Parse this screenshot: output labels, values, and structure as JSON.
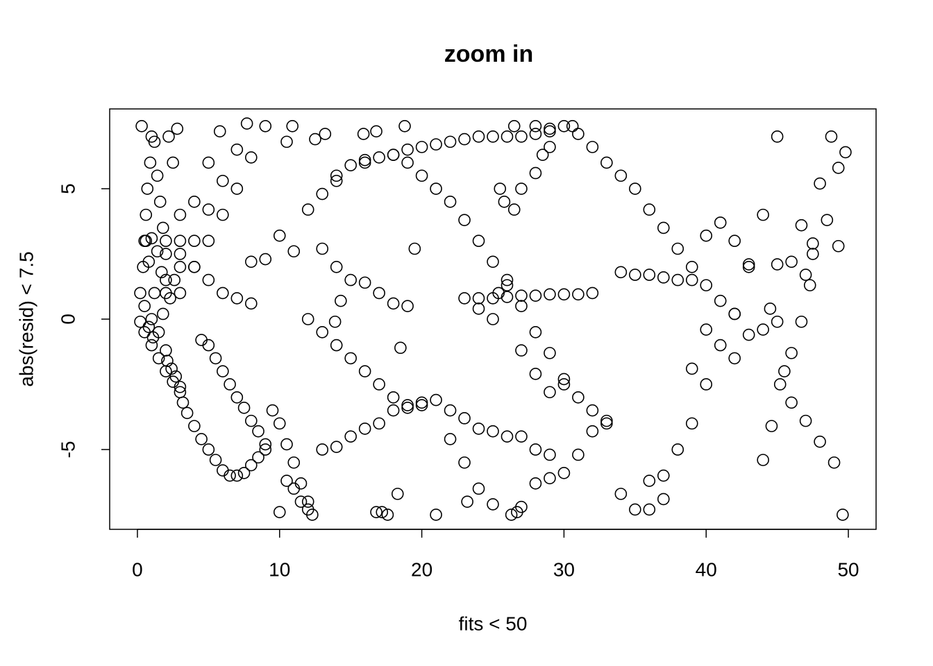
{
  "chart_data": {
    "type": "scatter",
    "title": "zoom in",
    "x_label": "fits < 50",
    "y_label": "abs(resid) < 7.5",
    "xlim": [
      -1.95,
      51.95
    ],
    "ylim": [
      -8.06,
      8.06
    ],
    "xticks": [
      0,
      10,
      20,
      30,
      40,
      50
    ],
    "yticks": [
      -5,
      0,
      5
    ],
    "color": "#000000",
    "x": [
      0.2,
      0.5,
      1,
      1.5,
      2,
      2.5,
      3,
      3.2,
      3.5,
      4,
      4.5,
      5,
      5.5,
      6,
      6.5,
      4.5,
      5,
      5.5,
      6,
      6.5,
      7,
      7.5,
      8,
      8.5,
      9,
      7,
      7.5,
      8,
      8.5,
      9,
      0.6,
      1,
      2,
      3,
      4,
      5,
      6,
      7,
      8,
      9.5,
      10,
      10.5,
      11,
      11.5,
      12,
      13,
      14,
      15,
      16,
      17,
      18,
      19,
      20,
      21,
      22,
      23,
      24,
      25,
      26,
      27,
      28,
      29,
      30,
      12,
      13,
      14,
      15,
      16,
      17,
      18,
      19,
      20,
      19,
      20,
      21,
      22,
      23,
      24,
      25,
      26,
      27,
      28,
      29,
      30,
      31,
      32,
      33,
      23,
      24,
      25,
      26,
      27,
      28,
      29,
      30,
      31,
      32,
      30.6,
      31,
      32,
      33,
      34,
      35,
      36,
      37,
      36,
      37,
      38,
      39,
      40,
      41,
      42,
      43,
      44,
      45,
      34,
      35,
      36,
      37,
      8,
      10,
      12,
      14,
      16,
      18,
      9,
      11,
      13,
      14,
      15,
      16,
      17,
      18,
      19,
      13,
      14,
      15,
      16,
      17,
      18,
      19,
      20,
      21,
      22,
      23,
      24,
      25,
      26,
      27,
      28,
      29,
      22,
      23,
      24,
      25,
      27,
      28,
      29,
      30,
      31,
      32,
      33,
      34,
      35,
      36,
      37,
      38,
      39,
      40,
      41,
      42,
      39,
      40,
      42,
      43,
      44,
      44.5,
      45,
      45.5,
      46,
      44,
      44.6,
      45.2,
      45,
      46,
      46.7,
      47,
      47.3,
      47.5,
      46.7,
      43,
      42,
      41,
      40,
      39,
      38,
      49.6,
      49,
      48,
      47,
      46,
      47.5,
      48,
      48.8,
      49.3,
      49.8,
      48.5,
      49.3,
      19.5,
      14.3,
      13.9,
      18.5,
      18.3,
      16.8,
      17.2,
      17.6,
      21,
      23.2,
      26.3,
      26.7,
      10,
      10.5,
      11,
      11.5,
      12,
      12.3,
      26.5,
      28,
      29,
      18.8,
      16.8,
      15.9,
      13.2,
      12.5,
      10.9,
      10.5,
      25.5,
      25.8,
      26.5,
      27,
      28,
      28.5,
      29,
      24,
      25,
      25.4,
      26,
      27,
      28,
      29,
      30,
      0.2,
      0.4,
      0.5,
      0.6,
      0.7,
      0.9,
      1,
      0.3,
      2,
      3,
      4,
      5,
      6,
      7,
      7.7,
      2,
      3,
      4,
      5,
      5.8,
      3,
      4,
      5,
      6,
      7,
      8,
      9,
      1.2,
      1.4,
      1.6,
      1.8,
      2,
      2.2,
      2.5,
      2.8,
      3,
      0.5,
      0.8,
      1,
      1.2,
      1.5,
      1.8,
      2,
      2.3,
      2.6,
      0.8,
      1.1,
      1.4,
      1.7,
      2.1,
      2.4,
      2.7,
      3
    ],
    "y": [
      -0.1,
      -0.5,
      -1,
      -1.5,
      -2,
      -2.4,
      -2.8,
      -3.2,
      -3.6,
      -4.1,
      -4.6,
      -5,
      -5.4,
      -5.8,
      -6,
      -0.8,
      -1,
      -1.5,
      -2,
      -2.5,
      -3,
      -3.4,
      -3.9,
      -4.3,
      -4.8,
      -6,
      -5.9,
      -5.6,
      -5.3,
      -5,
      3,
      3.1,
      3,
      2.5,
      2,
      1.5,
      1,
      0.8,
      0.6,
      -3.5,
      -4,
      -4.8,
      -5.5,
      -6.3,
      -7,
      4.8,
      5.5,
      5.9,
      6.1,
      6.2,
      6.3,
      6.5,
      6.6,
      6.7,
      6.8,
      6.9,
      7,
      7,
      7,
      7,
      7.1,
      7.2,
      7.4,
      0,
      -0.5,
      -1,
      -1.5,
      -2,
      -2.5,
      -3,
      -3.3,
      -3.3,
      6,
      5.5,
      5,
      4.5,
      3.8,
      3,
      2.2,
      1.5,
      0.5,
      -0.5,
      -1.3,
      -2.3,
      -3,
      -3.5,
      -4,
      0.8,
      0.8,
      0.8,
      0.85,
      0.9,
      0.9,
      0.95,
      0.95,
      0.95,
      1,
      7.4,
      7.1,
      6.6,
      6,
      5.5,
      5,
      4.2,
      3.5,
      -7.3,
      -6,
      -5,
      -4,
      -2.5,
      -1,
      0.2,
      2,
      4,
      7,
      1.8,
      1.7,
      1.7,
      1.6,
      2.2,
      3.2,
      4.2,
      5.3,
      6,
      6.3,
      2.3,
      2.6,
      2.7,
      2,
      1.5,
      1.4,
      1,
      0.6,
      0.5,
      -5,
      -4.9,
      -4.5,
      -4.2,
      -4,
      -3.5,
      -3.4,
      -3.2,
      -3.1,
      -3.5,
      -3.8,
      -4.2,
      -4.3,
      -4.5,
      -4.5,
      -5,
      -5.2,
      -4.6,
      -5.5,
      -6.5,
      -7.1,
      -7.2,
      -6.3,
      -6.1,
      -5.9,
      -5.2,
      -4.3,
      -3.9,
      -6.7,
      -7.3,
      -6.2,
      -6.9,
      2.7,
      2,
      1.3,
      0.7,
      0.2,
      -1.9,
      -0.4,
      -1.5,
      -0.6,
      -0.4,
      0.4,
      -0.1,
      -2,
      -1.3,
      -5.4,
      -4.1,
      -2.5,
      2.1,
      2.2,
      3.6,
      1.7,
      1.3,
      2.9,
      -0.1,
      2.1,
      3,
      3.7,
      3.2,
      1.5,
      1.5,
      -7.5,
      -5.5,
      -4.7,
      -3.9,
      -3.2,
      2.5,
      5.2,
      7,
      5.8,
      6.4,
      3.8,
      2.8,
      2.7,
      0.7,
      -0.1,
      -1.1,
      -6.7,
      -7.4,
      -7.4,
      -7.5,
      -7.5,
      -7,
      -7.5,
      -7.4,
      -7.4,
      -6.2,
      -6.5,
      -7,
      -7.3,
      -7.5,
      7.4,
      7.4,
      7.3,
      7.4,
      7.2,
      7.1,
      7.1,
      6.9,
      7.4,
      6.8,
      5,
      4.5,
      4.2,
      5,
      5.6,
      6.3,
      6.6,
      0.4,
      0,
      1,
      1.3,
      -1.2,
      -2.1,
      -2.8,
      -2.5,
      1,
      2,
      3,
      4,
      5,
      6,
      7,
      7.4,
      1,
      2,
      3,
      4.2,
      5.3,
      6.5,
      7.5,
      1.5,
      3,
      4.5,
      6,
      7.2,
      1,
      2,
      3,
      4,
      5,
      6.2,
      7.4,
      6.8,
      5.5,
      4.5,
      3.5,
      2.5,
      7,
      6,
      7.3,
      4,
      0.5,
      -0.3,
      0,
      1,
      -0.5,
      0.2,
      -1.2,
      0.8,
      1.5,
      2.2,
      -0.7,
      2.6,
      1.8,
      -1.6,
      -1.9,
      -2.2,
      -2.6
    ]
  }
}
